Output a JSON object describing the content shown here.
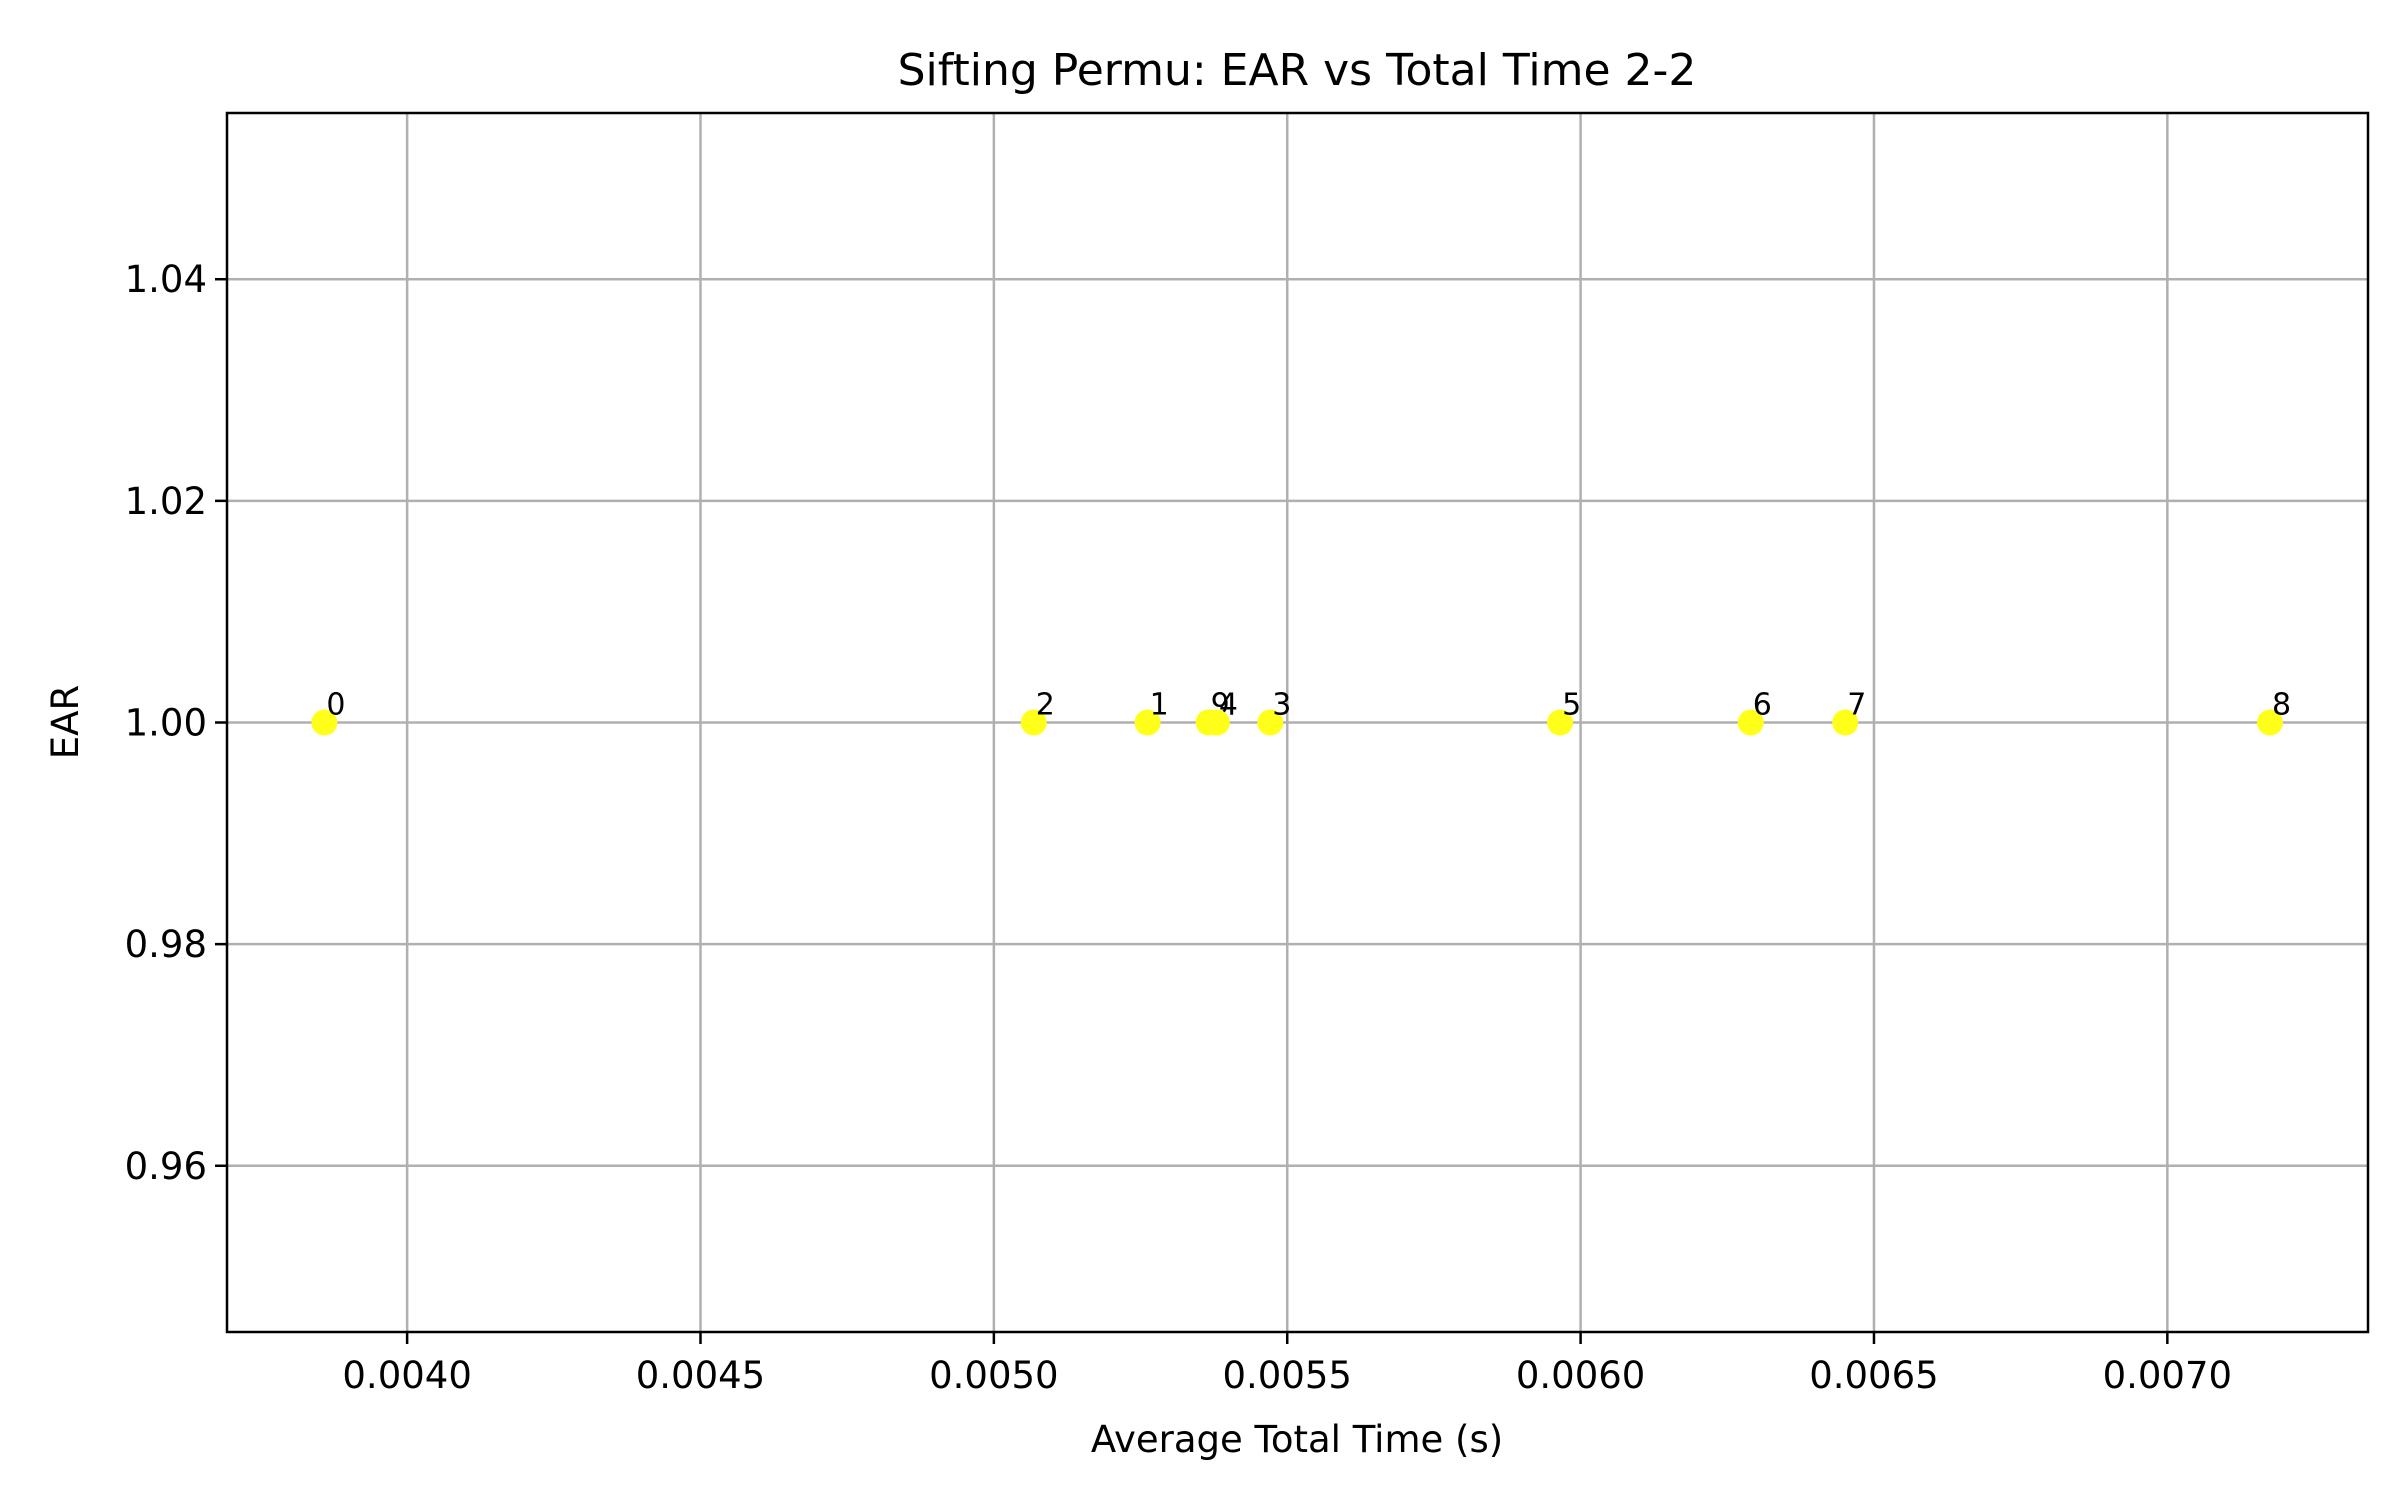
{
  "chart_data": {
    "type": "scatter",
    "title": "Sifting Permu: EAR vs Total Time 2-2",
    "xlabel": "Average Total Time (s)",
    "ylabel": "EAR",
    "xlim": [
      0.003693,
      0.007342
    ],
    "ylim": [
      0.945,
      1.055
    ],
    "x_ticks": [
      0.004,
      0.0045,
      0.005,
      0.0055,
      0.006,
      0.0065,
      0.007
    ],
    "x_tick_labels": [
      "0.0040",
      "0.0045",
      "0.0050",
      "0.0055",
      "0.0060",
      "0.0065",
      "0.0070"
    ],
    "y_ticks": [
      0.96,
      0.98,
      1.0,
      1.02,
      1.04
    ],
    "y_tick_labels": [
      "0.96",
      "0.98",
      "1.00",
      "1.02",
      "1.04"
    ],
    "grid": true,
    "marker_color": "#ffff1a",
    "points": [
      {
        "label": "0",
        "x": 0.003859,
        "y": 1.0
      },
      {
        "label": "2",
        "x": 0.005068,
        "y": 1.0
      },
      {
        "label": "1",
        "x": 0.005262,
        "y": 1.0
      },
      {
        "label": "9",
        "x": 0.005366,
        "y": 1.0
      },
      {
        "label": "4",
        "x": 0.00538,
        "y": 1.0
      },
      {
        "label": "3",
        "x": 0.005471,
        "y": 1.0
      },
      {
        "label": "5",
        "x": 0.005965,
        "y": 1.0
      },
      {
        "label": "6",
        "x": 0.00629,
        "y": 1.0
      },
      {
        "label": "7",
        "x": 0.006451,
        "y": 1.0
      },
      {
        "label": "8",
        "x": 0.007175,
        "y": 1.0
      }
    ]
  }
}
